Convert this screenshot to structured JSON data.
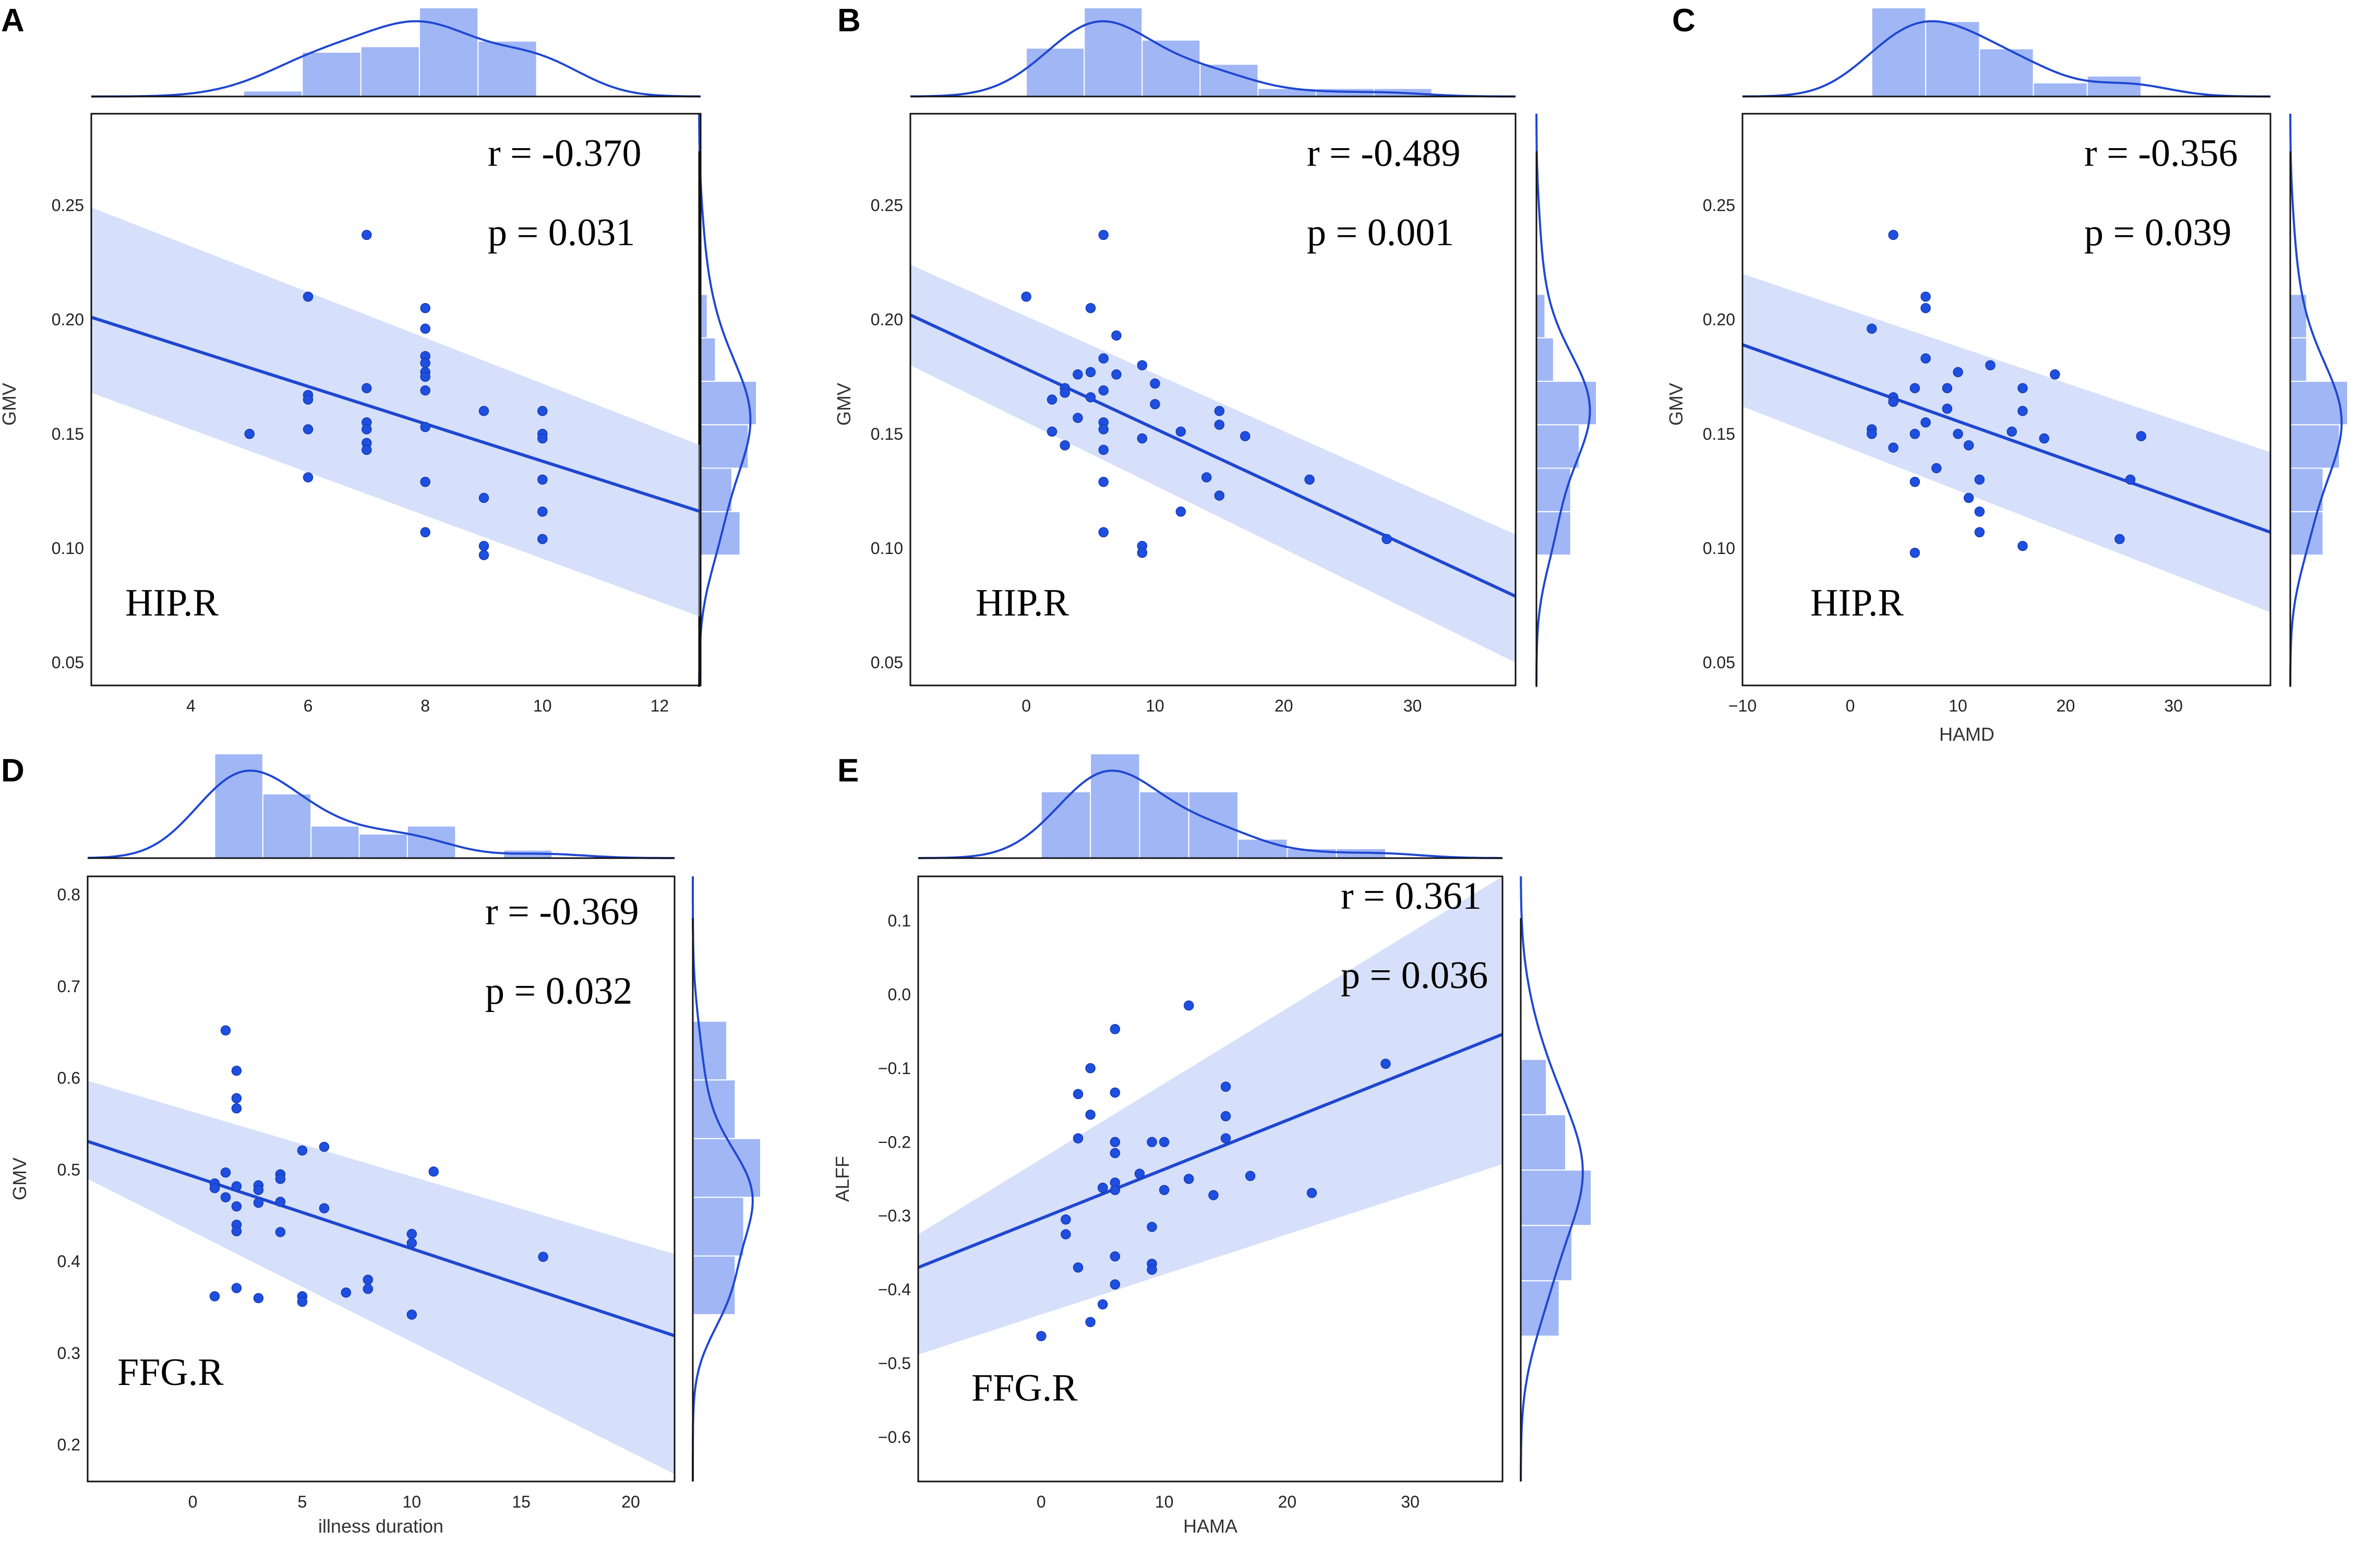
{
  "chart_data": [
    {
      "panel": "A",
      "type": "scatter",
      "xlabel": "",
      "ylabel": "GMV",
      "xlim": [
        2.3,
        12.7
      ],
      "ylim": [
        0.04,
        0.29
      ],
      "xticks": [
        "4",
        "6",
        "8",
        "10",
        "12"
      ],
      "yticks": [
        "0.05",
        "0.10",
        "0.15",
        "0.20",
        "0.25"
      ],
      "r_text": "r = -0.370",
      "p_text": "p = 0.031",
      "region": "HIP.R",
      "fit": {
        "x": [
          2.3,
          12.7
        ],
        "y": [
          0.201,
          0.116
        ],
        "ci_upper": [
          0.249,
          0.145
        ],
        "ci_lower": [
          0.168,
          0.07
        ]
      },
      "points": [
        [
          5,
          0.15
        ],
        [
          6,
          0.21
        ],
        [
          6,
          0.167
        ],
        [
          6,
          0.165
        ],
        [
          6,
          0.152
        ],
        [
          6,
          0.131
        ],
        [
          7,
          0.237
        ],
        [
          7,
          0.17
        ],
        [
          7,
          0.155
        ],
        [
          7,
          0.152
        ],
        [
          7,
          0.146
        ],
        [
          7,
          0.143
        ],
        [
          8,
          0.205
        ],
        [
          8,
          0.196
        ],
        [
          8,
          0.184
        ],
        [
          8,
          0.181
        ],
        [
          8,
          0.177
        ],
        [
          8,
          0.175
        ],
        [
          8,
          0.169
        ],
        [
          8,
          0.153
        ],
        [
          8,
          0.129
        ],
        [
          8,
          0.107
        ],
        [
          9,
          0.16
        ],
        [
          9,
          0.122
        ],
        [
          9,
          0.101
        ],
        [
          9,
          0.097
        ],
        [
          10,
          0.16
        ],
        [
          10,
          0.15
        ],
        [
          10,
          0.148
        ],
        [
          10,
          0.13
        ],
        [
          10,
          0.116
        ],
        [
          10,
          0.104
        ]
      ],
      "top_hist": {
        "range": [
          2.3,
          12.7
        ],
        "edges": [
          4.9,
          5.9,
          6.9,
          7.9,
          8.9,
          9.9
        ],
        "counts": [
          1,
          8,
          9,
          16,
          10
        ]
      },
      "right_hist": {
        "range": [
          0.04,
          0.29
        ],
        "edges": [
          0.097,
          0.116,
          0.135,
          0.154,
          0.173,
          0.192,
          0.211
        ],
        "counts": [
          5,
          4,
          6,
          7,
          2,
          1
        ]
      }
    },
    {
      "panel": "B",
      "type": "scatter",
      "xlabel": "",
      "ylabel": "GMV",
      "xlim": [
        -9,
        38
      ],
      "ylim": [
        0.04,
        0.29
      ],
      "xticks": [
        "0",
        "10",
        "20",
        "30"
      ],
      "yticks": [
        "0.05",
        "0.10",
        "0.15",
        "0.20",
        "0.25"
      ],
      "r_text": "r = -0.489",
      "p_text": "p = 0.001",
      "region": "HIP.R",
      "fit": {
        "x": [
          -9,
          38
        ],
        "y": [
          0.202,
          0.079
        ],
        "ci_upper": [
          0.224,
          0.106
        ],
        "ci_lower": [
          0.18,
          0.05
        ]
      },
      "points": [
        [
          0,
          0.21
        ],
        [
          2,
          0.165
        ],
        [
          2,
          0.151
        ],
        [
          3,
          0.17
        ],
        [
          3,
          0.168
        ],
        [
          3,
          0.145
        ],
        [
          4,
          0.176
        ],
        [
          4,
          0.157
        ],
        [
          5,
          0.205
        ],
        [
          5,
          0.177
        ],
        [
          5,
          0.166
        ],
        [
          6,
          0.237
        ],
        [
          6,
          0.183
        ],
        [
          6,
          0.169
        ],
        [
          6,
          0.155
        ],
        [
          6,
          0.152
        ],
        [
          6,
          0.143
        ],
        [
          6,
          0.129
        ],
        [
          6,
          0.107
        ],
        [
          7,
          0.193
        ],
        [
          7,
          0.176
        ],
        [
          9,
          0.18
        ],
        [
          9,
          0.148
        ],
        [
          9,
          0.101
        ],
        [
          9,
          0.098
        ],
        [
          10,
          0.172
        ],
        [
          10,
          0.163
        ],
        [
          12,
          0.151
        ],
        [
          12,
          0.116
        ],
        [
          14,
          0.131
        ],
        [
          15,
          0.16
        ],
        [
          15,
          0.154
        ],
        [
          15,
          0.123
        ],
        [
          17,
          0.149
        ],
        [
          22,
          0.13
        ],
        [
          28,
          0.104
        ]
      ],
      "top_hist": {
        "range": [
          -9,
          38
        ],
        "edges": [
          0,
          4.5,
          9,
          13.5,
          18,
          22.5,
          27,
          31.5
        ],
        "counts": [
          6,
          11,
          7,
          4,
          1,
          1,
          1
        ]
      },
      "right_hist": {
        "range": [
          0.04,
          0.29
        ],
        "edges": [
          0.097,
          0.116,
          0.135,
          0.154,
          0.173,
          0.192,
          0.211
        ],
        "counts": [
          4,
          4,
          5,
          7,
          2,
          1
        ]
      }
    },
    {
      "panel": "C",
      "type": "scatter",
      "xlabel": "HAMD",
      "ylabel": "GMV",
      "xlim": [
        -10,
        39
      ],
      "ylim": [
        0.04,
        0.29
      ],
      "xticks": [
        "−10",
        "0",
        "10",
        "20",
        "30"
      ],
      "yticks": [
        "0.05",
        "0.10",
        "0.15",
        "0.20",
        "0.25"
      ],
      "r_text": "r = -0.356",
      "p_text": "p = 0.039",
      "region": "HIP.R",
      "fit": {
        "x": [
          -10,
          39
        ],
        "y": [
          0.189,
          0.107
        ],
        "ci_upper": [
          0.22,
          0.142
        ],
        "ci_lower": [
          0.162,
          0.072
        ]
      },
      "points": [
        [
          2,
          0.196
        ],
        [
          2,
          0.152
        ],
        [
          2,
          0.15
        ],
        [
          4,
          0.237
        ],
        [
          4,
          0.166
        ],
        [
          4,
          0.164
        ],
        [
          4,
          0.144
        ],
        [
          6,
          0.17
        ],
        [
          6,
          0.15
        ],
        [
          6,
          0.129
        ],
        [
          6,
          0.098
        ],
        [
          7,
          0.21
        ],
        [
          7,
          0.205
        ],
        [
          7,
          0.183
        ],
        [
          7,
          0.155
        ],
        [
          8,
          0.135
        ],
        [
          9,
          0.17
        ],
        [
          9,
          0.161
        ],
        [
          10,
          0.177
        ],
        [
          10,
          0.15
        ],
        [
          11,
          0.145
        ],
        [
          11,
          0.122
        ],
        [
          12,
          0.13
        ],
        [
          12,
          0.116
        ],
        [
          12,
          0.107
        ],
        [
          13,
          0.18
        ],
        [
          15,
          0.151
        ],
        [
          16,
          0.17
        ],
        [
          16,
          0.16
        ],
        [
          16,
          0.101
        ],
        [
          18,
          0.148
        ],
        [
          19,
          0.176
        ],
        [
          25,
          0.104
        ],
        [
          26,
          0.13
        ],
        [
          27,
          0.149
        ]
      ],
      "top_hist": {
        "range": [
          -10,
          39
        ],
        "edges": [
          2,
          7,
          12,
          17,
          22,
          27
        ],
        "counts": [
          13,
          11,
          7,
          2,
          3
        ]
      },
      "right_hist": {
        "range": [
          0.04,
          0.29
        ],
        "edges": [
          0.097,
          0.116,
          0.135,
          0.154,
          0.173,
          0.192,
          0.211
        ],
        "counts": [
          4,
          4,
          6,
          7,
          2,
          2
        ]
      }
    },
    {
      "panel": "D",
      "type": "scatter",
      "xlabel": "illness duration",
      "ylabel": "GMV",
      "xlim": [
        -4.8,
        22
      ],
      "ylim": [
        0.16,
        0.82
      ],
      "xticks": [
        "0",
        "5",
        "10",
        "15",
        "20"
      ],
      "yticks": [
        "0.2",
        "0.3",
        "0.4",
        "0.5",
        "0.6",
        "0.7",
        "0.8"
      ],
      "r_text": "r = -0.369",
      "p_text": "p = 0.032",
      "region": "FFG.R",
      "fit": {
        "x": [
          -4.8,
          22
        ],
        "y": [
          0.531,
          0.319
        ],
        "ci_upper": [
          0.597,
          0.408
        ],
        "ci_lower": [
          0.49,
          0.168
        ]
      },
      "points": [
        [
          1,
          0.485
        ],
        [
          1,
          0.48
        ],
        [
          1,
          0.362
        ],
        [
          1.5,
          0.652
        ],
        [
          1.5,
          0.497
        ],
        [
          1.5,
          0.47
        ],
        [
          2,
          0.608
        ],
        [
          2,
          0.578
        ],
        [
          2,
          0.567
        ],
        [
          2,
          0.482
        ],
        [
          2,
          0.46
        ],
        [
          2,
          0.44
        ],
        [
          2,
          0.433
        ],
        [
          2,
          0.371
        ],
        [
          3,
          0.483
        ],
        [
          3,
          0.478
        ],
        [
          3,
          0.464
        ],
        [
          3,
          0.36
        ],
        [
          4,
          0.495
        ],
        [
          4,
          0.49
        ],
        [
          4,
          0.465
        ],
        [
          4,
          0.432
        ],
        [
          5,
          0.521
        ],
        [
          5,
          0.362
        ],
        [
          5,
          0.356
        ],
        [
          6,
          0.525
        ],
        [
          6,
          0.458
        ],
        [
          7,
          0.366
        ],
        [
          8,
          0.38
        ],
        [
          8,
          0.37
        ],
        [
          10,
          0.43
        ],
        [
          10,
          0.42
        ],
        [
          10,
          0.342
        ],
        [
          11,
          0.498
        ],
        [
          16,
          0.405
        ]
      ],
      "top_hist": {
        "range": [
          -4.8,
          22
        ],
        "edges": [
          1,
          3.2,
          5.4,
          7.6,
          9.8,
          12,
          14.2,
          16.4
        ],
        "counts": [
          13,
          8,
          4,
          3,
          4,
          0,
          1
        ]
      },
      "right_hist": {
        "range": [
          0.16,
          0.82
        ],
        "edges": [
          0.342,
          0.406,
          0.47,
          0.534,
          0.598,
          0.662
        ],
        "counts": [
          5,
          6,
          8,
          5,
          4
        ]
      }
    },
    {
      "panel": "E",
      "type": "scatter",
      "xlabel": "HAMA",
      "ylabel": "ALFF",
      "xlim": [
        -10,
        37.5
      ],
      "ylim": [
        -0.66,
        0.16
      ],
      "xticks": [
        "0",
        "10",
        "20",
        "30"
      ],
      "yticks": [
        "−0.6",
        "−0.5",
        "−0.4",
        "−0.3",
        "−0.2",
        "−0.1",
        "0.0",
        "0.1"
      ],
      "r_text": "r = 0.361",
      "p_text": "p = 0.036",
      "region": "FFG.R",
      "fit": {
        "x": [
          -10,
          37.5
        ],
        "y": [
          -0.37,
          -0.054
        ],
        "ci_upper": [
          -0.325,
          0.16
        ],
        "ci_lower": [
          -0.488,
          -0.23
        ]
      },
      "points": [
        [
          0,
          -0.463
        ],
        [
          2,
          -0.305
        ],
        [
          2,
          -0.325
        ],
        [
          3,
          -0.135
        ],
        [
          3,
          -0.195
        ],
        [
          3,
          -0.37
        ],
        [
          4,
          -0.1
        ],
        [
          4,
          -0.163
        ],
        [
          4,
          -0.444
        ],
        [
          5,
          -0.262
        ],
        [
          5,
          -0.42
        ],
        [
          5,
          -0.262
        ],
        [
          6,
          -0.047
        ],
        [
          6,
          -0.133
        ],
        [
          6,
          -0.2
        ],
        [
          6,
          -0.215
        ],
        [
          6,
          -0.255
        ],
        [
          6,
          -0.265
        ],
        [
          6,
          -0.355
        ],
        [
          6,
          -0.393
        ],
        [
          8,
          -0.243
        ],
        [
          9,
          -0.2
        ],
        [
          9,
          -0.315
        ],
        [
          9,
          -0.365
        ],
        [
          9,
          -0.373
        ],
        [
          10,
          -0.2
        ],
        [
          10,
          -0.265
        ],
        [
          12,
          -0.015
        ],
        [
          12,
          -0.25
        ],
        [
          14,
          -0.272
        ],
        [
          15,
          -0.125
        ],
        [
          15,
          -0.165
        ],
        [
          15,
          -0.195
        ],
        [
          17,
          -0.246
        ],
        [
          22,
          -0.269
        ],
        [
          28,
          -0.094
        ]
      ],
      "top_hist": {
        "range": [
          -10,
          37.5
        ],
        "edges": [
          0,
          4,
          8,
          12,
          16,
          20,
          24,
          28
        ],
        "counts": [
          7,
          11,
          7,
          7,
          2,
          1,
          1
        ]
      },
      "right_hist": {
        "range": [
          -0.66,
          0.16
        ],
        "edges": [
          -0.463,
          -0.388,
          -0.313,
          -0.238,
          -0.163,
          -0.088
        ],
        "counts": [
          6,
          8,
          11,
          7,
          4
        ]
      }
    }
  ]
}
